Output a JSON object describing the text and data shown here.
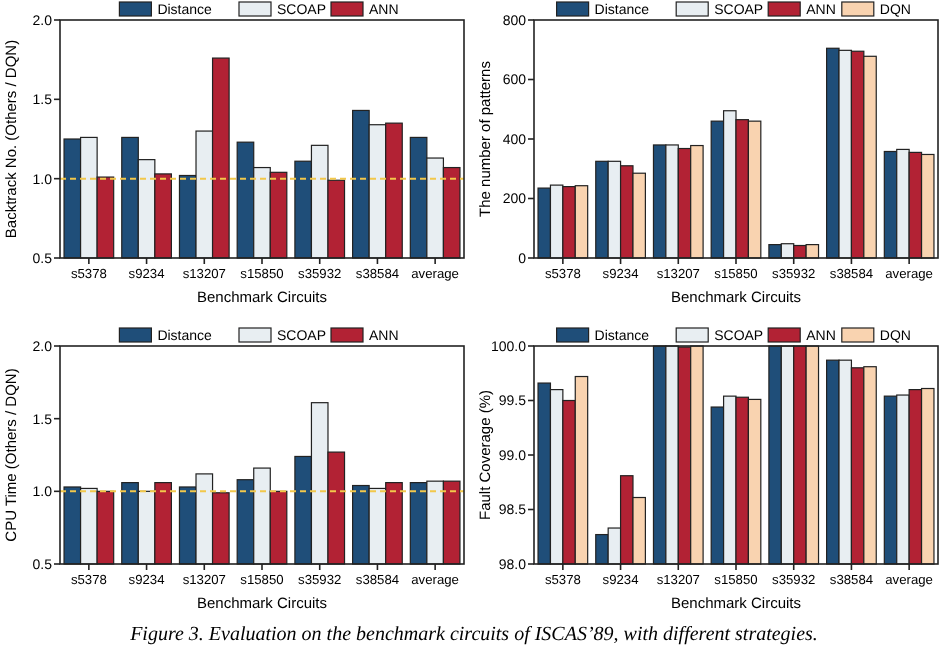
{
  "chart_data": [
    {
      "type": "bar",
      "xlabel": "Benchmark Circuits",
      "ylabel": "Backtrack No. (Others / DQN)",
      "categories": [
        "s5378",
        "s9234",
        "s13207",
        "s15850",
        "s35932",
        "s38584",
        "average"
      ],
      "series": [
        {
          "name": "Distance",
          "color": "#1f4e79",
          "values": [
            1.25,
            1.26,
            1.02,
            1.23,
            1.11,
            1.43,
            1.26
          ]
        },
        {
          "name": "SCOAP",
          "color": "#e8eef2",
          "values": [
            1.26,
            1.12,
            1.3,
            1.07,
            1.21,
            1.34,
            1.13
          ]
        },
        {
          "name": "ANN",
          "color": "#b22234",
          "values": [
            1.01,
            1.03,
            1.76,
            1.04,
            0.99,
            1.35,
            1.07
          ]
        }
      ],
      "ylim": [
        0.5,
        2
      ],
      "yticks": [
        {
          "value": 0.5,
          "label": "0.5"
        },
        {
          "value": 1,
          "label": "1.0"
        },
        {
          "value": 1.5,
          "label": "1.5"
        },
        {
          "value": 2,
          "label": "2.0"
        }
      ],
      "ref_lines": [
        {
          "axis": "y",
          "value": 1,
          "color": "#f2c84b",
          "line_style": "dashed"
        }
      ],
      "legend": "top",
      "grid": false
    },
    {
      "type": "bar",
      "xlabel": "Benchmark Circuits",
      "ylabel": "The number of patterns",
      "categories": [
        "s5378",
        "s9234",
        "s13207",
        "s15850",
        "s35932",
        "s38584",
        "average"
      ],
      "series": [
        {
          "name": "Distance",
          "color": "#1f4e79",
          "values": [
            235,
            325,
            380,
            460,
            45,
            705,
            358
          ]
        },
        {
          "name": "SCOAP",
          "color": "#e8eef2",
          "values": [
            245,
            325,
            380,
            495,
            48,
            698,
            365
          ]
        },
        {
          "name": "ANN",
          "color": "#b22234",
          "values": [
            240,
            310,
            368,
            465,
            42,
            695,
            355
          ]
        },
        {
          "name": "DQN",
          "color": "#f9d3b0",
          "values": [
            243,
            285,
            378,
            460,
            45,
            678,
            348
          ]
        }
      ],
      "ylim": [
        0,
        800
      ],
      "yticks": [
        0,
        200,
        400,
        600,
        800
      ],
      "legend": "top",
      "grid": false
    },
    {
      "type": "bar",
      "xlabel": "Benchmark Circuits",
      "ylabel": "CPU Time (Others / DQN)",
      "categories": [
        "s5378",
        "s9234",
        "s13207",
        "s15850",
        "s35932",
        "s38584",
        "average"
      ],
      "series": [
        {
          "name": "Distance",
          "color": "#1f4e79",
          "values": [
            1.03,
            1.06,
            1.03,
            1.08,
            1.24,
            1.04,
            1.06
          ]
        },
        {
          "name": "SCOAP",
          "color": "#e8eef2",
          "values": [
            1.02,
            1.0,
            1.12,
            1.16,
            1.61,
            1.02,
            1.07
          ]
        },
        {
          "name": "ANN",
          "color": "#b22234",
          "values": [
            1.0,
            1.06,
            0.99,
            1.0,
            1.27,
            1.06,
            1.07
          ]
        }
      ],
      "ylim": [
        0.5,
        2
      ],
      "yticks": [
        {
          "value": 0.5,
          "label": "0.5"
        },
        {
          "value": 1,
          "label": "1.0"
        },
        {
          "value": 1.5,
          "label": "1.5"
        },
        {
          "value": 2,
          "label": "2.0"
        }
      ],
      "ref_lines": [
        {
          "axis": "y",
          "value": 1,
          "color": "#f2c84b",
          "line_style": "dashed"
        }
      ],
      "legend": "top",
      "grid": false
    },
    {
      "type": "bar",
      "xlabel": "Benchmark Circuits",
      "ylabel": "Fault Coverage (%)",
      "categories": [
        "s5378",
        "s9234",
        "s13207",
        "s15850",
        "s35932",
        "s38584",
        "average"
      ],
      "series": [
        {
          "name": "Distance",
          "color": "#1f4e79",
          "values": [
            99.66,
            98.27,
            100.0,
            99.44,
            100.0,
            99.87,
            99.54
          ]
        },
        {
          "name": "SCOAP",
          "color": "#e8eef2",
          "values": [
            99.6,
            98.33,
            100.0,
            99.54,
            100.0,
            99.87,
            99.55
          ]
        },
        {
          "name": "ANN",
          "color": "#b22234",
          "values": [
            99.5,
            98.81,
            99.99,
            99.53,
            100.0,
            99.8,
            99.6
          ]
        },
        {
          "name": "DQN",
          "color": "#f9d3b0",
          "values": [
            99.72,
            98.61,
            100.0,
            99.51,
            100.0,
            99.81,
            99.61
          ]
        }
      ],
      "ylim": [
        98,
        100
      ],
      "yticks": [
        {
          "value": 98,
          "label": "98.0"
        },
        {
          "value": 98.5,
          "label": "98.5"
        },
        {
          "value": 99,
          "label": "99.0"
        },
        {
          "value": 99.5,
          "label": "99.5"
        },
        {
          "value": 100,
          "label": "100.0"
        }
      ],
      "legend": "top",
      "grid": false,
      "annotations": [
        "Figure 3. Evaluation on the benchmark circuits of ISCAS’89, with different strategies."
      ]
    }
  ]
}
